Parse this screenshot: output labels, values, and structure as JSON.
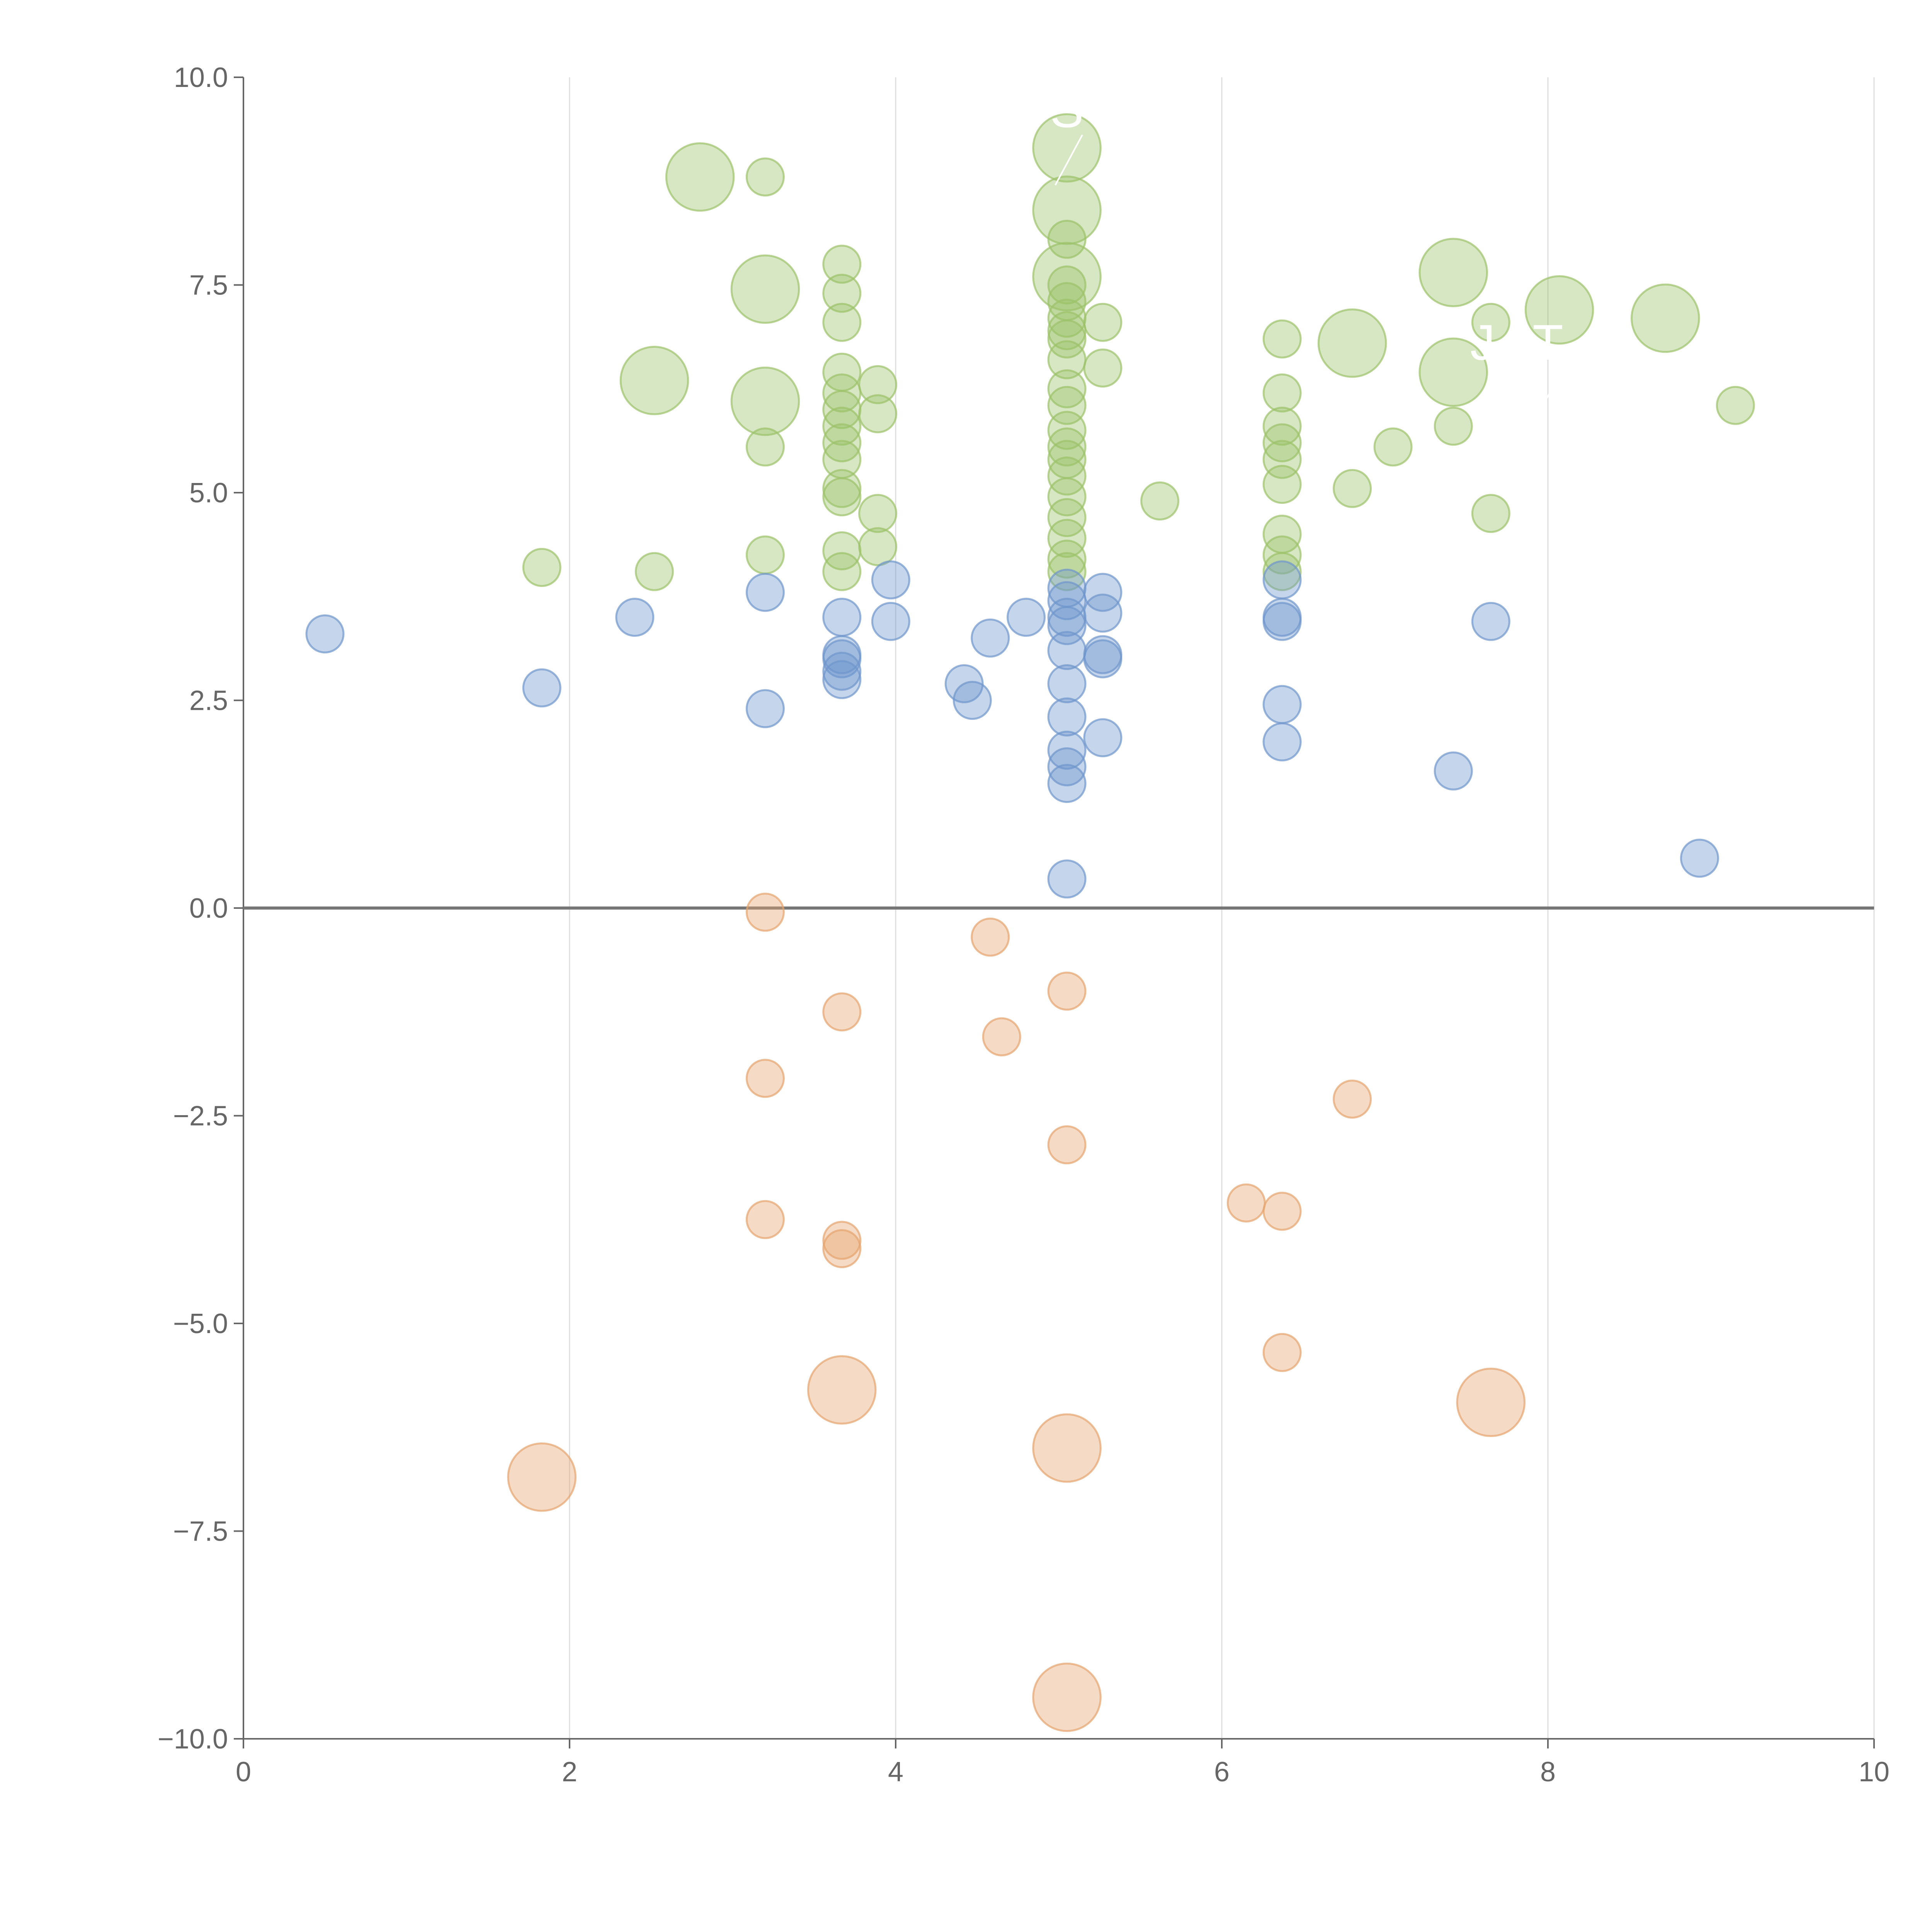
{
  "chart_data": {
    "type": "scatter",
    "title": "",
    "xlabel": "",
    "ylabel": "",
    "xlim": [
      0,
      10
    ],
    "ylim": [
      -10,
      10
    ],
    "grid": "vertical gridlines at x ticks",
    "x_ticks": [
      "0",
      "2",
      "4",
      "6",
      "8",
      "10"
    ],
    "y_ticks": [
      "10.0",
      "7.5",
      "5.0",
      "2.5",
      "0.0",
      "−2.5",
      "−5.0",
      "−7.5",
      "−10.0"
    ],
    "x_tick_values": [
      0,
      2,
      4,
      6,
      8,
      10
    ],
    "y_tick_values": [
      10,
      7.5,
      5,
      2.5,
      0,
      -2.5,
      -5,
      -7.5,
      -10
    ],
    "zero_line_y": 0,
    "series": [
      {
        "name": "green",
        "color": "#9cc26a",
        "points": [
          [
            2.8,
            8.8,
            2.5
          ],
          [
            3.2,
            8.8,
            1
          ],
          [
            5.05,
            9.15,
            2.5
          ],
          [
            5.05,
            8.4,
            2.5
          ],
          [
            3.2,
            7.45,
            2.5
          ],
          [
            3.67,
            7.75,
            1
          ],
          [
            3.67,
            7.4,
            1
          ],
          [
            3.67,
            7.05,
            1
          ],
          [
            5.05,
            8.05,
            1
          ],
          [
            5.05,
            7.6,
            2.5
          ],
          [
            5.05,
            7.5,
            1
          ],
          [
            5.05,
            7.3,
            1
          ],
          [
            5.05,
            7.1,
            1
          ],
          [
            5.05,
            6.95,
            1
          ],
          [
            5.05,
            6.85,
            1
          ],
          [
            5.05,
            6.6,
            1
          ],
          [
            5.27,
            7.05,
            1
          ],
          [
            5.27,
            6.5,
            1
          ],
          [
            2.52,
            6.35,
            2.5
          ],
          [
            3.2,
            6.1,
            2.5
          ],
          [
            3.2,
            5.55,
            1
          ],
          [
            3.67,
            6.45,
            1
          ],
          [
            3.67,
            6.2,
            1
          ],
          [
            3.67,
            6.0,
            1
          ],
          [
            3.67,
            5.8,
            1
          ],
          [
            3.67,
            5.6,
            1
          ],
          [
            3.67,
            5.4,
            1
          ],
          [
            3.67,
            5.05,
            1
          ],
          [
            3.67,
            4.95,
            1
          ],
          [
            3.89,
            6.3,
            1
          ],
          [
            3.89,
            5.95,
            1
          ],
          [
            3.89,
            4.75,
            1
          ],
          [
            3.89,
            4.35,
            1
          ],
          [
            3.67,
            4.3,
            1
          ],
          [
            3.67,
            4.05,
            1
          ],
          [
            3.2,
            4.25,
            1
          ],
          [
            1.83,
            4.1,
            1
          ],
          [
            2.52,
            4.05,
            1
          ],
          [
            5.05,
            6.25,
            1
          ],
          [
            5.05,
            6.05,
            1
          ],
          [
            5.05,
            5.75,
            1
          ],
          [
            5.05,
            5.55,
            1
          ],
          [
            5.05,
            5.4,
            1
          ],
          [
            5.05,
            5.2,
            1
          ],
          [
            5.05,
            4.95,
            1
          ],
          [
            5.05,
            4.7,
            1
          ],
          [
            5.05,
            4.45,
            1
          ],
          [
            5.05,
            4.2,
            1
          ],
          [
            5.05,
            4.05,
            1
          ],
          [
            5.62,
            4.9,
            1
          ],
          [
            6.37,
            6.85,
            1
          ],
          [
            6.37,
            6.2,
            1
          ],
          [
            6.37,
            5.8,
            1
          ],
          [
            6.37,
            5.6,
            1
          ],
          [
            6.37,
            5.4,
            1
          ],
          [
            6.37,
            5.1,
            1
          ],
          [
            6.37,
            4.5,
            1
          ],
          [
            6.37,
            4.25,
            1
          ],
          [
            6.37,
            4.05,
            1
          ],
          [
            6.8,
            6.8,
            2.5
          ],
          [
            6.8,
            5.05,
            1
          ],
          [
            7.05,
            5.55,
            1
          ],
          [
            7.42,
            7.65,
            2.5
          ],
          [
            7.42,
            6.45,
            2.5
          ],
          [
            7.42,
            5.8,
            1
          ],
          [
            7.65,
            7.05,
            1
          ],
          [
            7.65,
            4.75,
            1
          ],
          [
            8.07,
            7.2,
            2.5
          ],
          [
            8.72,
            7.1,
            2.5
          ],
          [
            9.15,
            6.05,
            1
          ]
        ]
      },
      {
        "name": "blue",
        "color": "#6f96cc",
        "points": [
          [
            0.5,
            3.3,
            1
          ],
          [
            1.83,
            2.65,
            1
          ],
          [
            2.4,
            3.5,
            1
          ],
          [
            3.2,
            3.8,
            1
          ],
          [
            3.2,
            2.4,
            1
          ],
          [
            3.67,
            3.5,
            1
          ],
          [
            3.67,
            3.05,
            1
          ],
          [
            3.67,
            3.0,
            1
          ],
          [
            3.67,
            2.85,
            1
          ],
          [
            3.67,
            2.75,
            1
          ],
          [
            3.97,
            3.95,
            1
          ],
          [
            3.97,
            3.45,
            1
          ],
          [
            4.42,
            2.7,
            1
          ],
          [
            4.47,
            2.5,
            1
          ],
          [
            4.58,
            3.25,
            1
          ],
          [
            4.8,
            3.5,
            1
          ],
          [
            5.05,
            3.85,
            1
          ],
          [
            5.05,
            3.7,
            1
          ],
          [
            5.05,
            3.5,
            1
          ],
          [
            5.05,
            3.4,
            1
          ],
          [
            5.05,
            3.1,
            1
          ],
          [
            5.05,
            2.7,
            1
          ],
          [
            5.05,
            2.3,
            1
          ],
          [
            5.05,
            1.9,
            1
          ],
          [
            5.05,
            1.7,
            1
          ],
          [
            5.05,
            1.5,
            1
          ],
          [
            5.05,
            0.35,
            1
          ],
          [
            5.27,
            3.8,
            1
          ],
          [
            5.27,
            3.55,
            1
          ],
          [
            5.27,
            3.05,
            1
          ],
          [
            5.27,
            3.0,
            1
          ],
          [
            5.27,
            2.05,
            1
          ],
          [
            6.37,
            3.95,
            1
          ],
          [
            6.37,
            3.5,
            1
          ],
          [
            6.37,
            3.45,
            1
          ],
          [
            6.37,
            2.45,
            1
          ],
          [
            6.37,
            2.0,
            1
          ],
          [
            7.42,
            1.65,
            1
          ],
          [
            7.65,
            3.45,
            1
          ],
          [
            8.93,
            0.6,
            1
          ]
        ]
      },
      {
        "name": "orange",
        "color": "#e6a46e",
        "points": [
          [
            3.2,
            -0.05,
            1
          ],
          [
            4.58,
            -0.35,
            1
          ],
          [
            5.05,
            -1.0,
            1
          ],
          [
            3.67,
            -1.25,
            1
          ],
          [
            4.65,
            -1.55,
            1
          ],
          [
            3.2,
            -2.05,
            1
          ],
          [
            6.8,
            -2.3,
            1
          ],
          [
            5.05,
            -2.85,
            1
          ],
          [
            6.15,
            -3.55,
            1
          ],
          [
            6.37,
            -3.65,
            1
          ],
          [
            3.2,
            -3.75,
            1
          ],
          [
            3.67,
            -4.0,
            1
          ],
          [
            3.67,
            -4.1,
            1
          ],
          [
            6.37,
            -5.35,
            1
          ],
          [
            3.67,
            -5.8,
            2.5
          ],
          [
            7.65,
            -5.95,
            2.5
          ],
          [
            5.05,
            -6.5,
            2.5
          ],
          [
            1.83,
            -6.85,
            2.5
          ],
          [
            5.05,
            -9.5,
            2.5
          ]
        ]
      }
    ],
    "annotations": [
      {
        "text": "S",
        "x": 5.05,
        "y": 9.4
      },
      {
        "text": "J",
        "x": 7.6,
        "y": 6.6
      },
      {
        "text": "T",
        "x": 8.0,
        "y": 6.6
      }
    ]
  }
}
